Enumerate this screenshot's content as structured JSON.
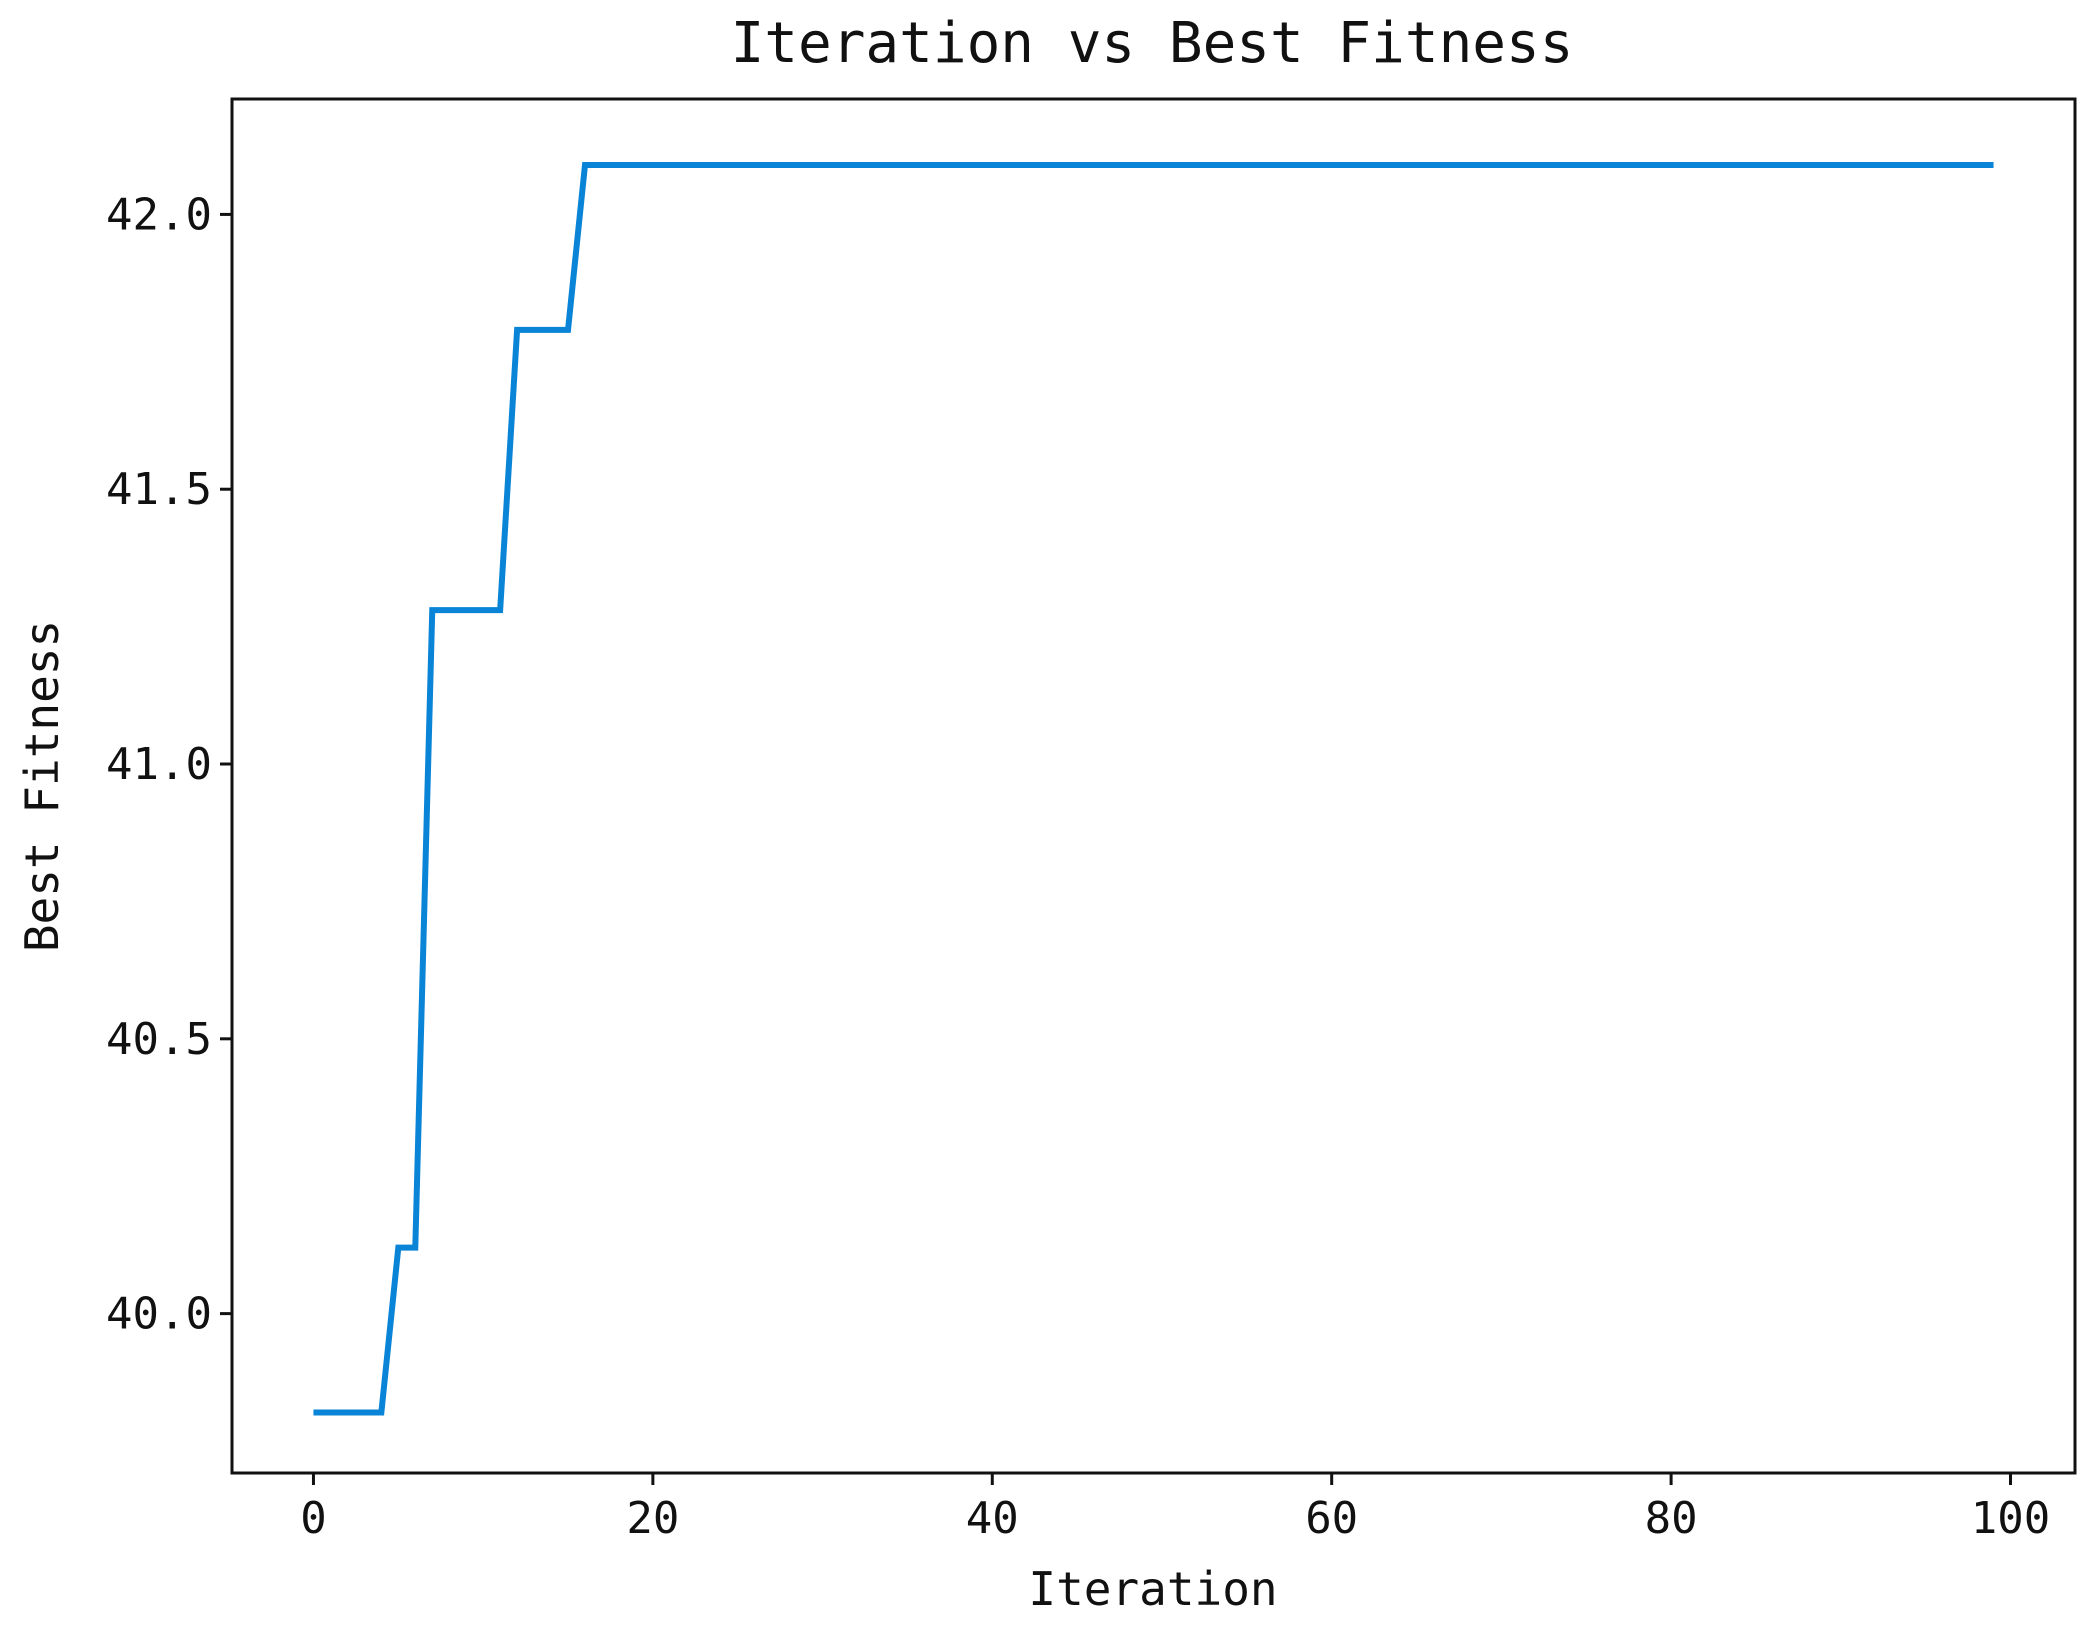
{
  "chart_data": {
    "type": "line",
    "title": "Iteration vs Best Fitness",
    "xlabel": "Iteration",
    "ylabel": "Best Fitness",
    "xlim": [
      -4.8,
      103.8
    ],
    "ylim": [
      39.71,
      42.21
    ],
    "xticks": [
      0,
      20,
      40,
      60,
      80,
      100
    ],
    "yticks": [
      40.0,
      40.5,
      41.0,
      41.5,
      42.0
    ],
    "xtick_labels": [
      "0",
      "20",
      "40",
      "60",
      "80",
      "100"
    ],
    "ytick_labels": [
      "40.0",
      "40.5",
      "41.0",
      "41.5",
      "42.0"
    ],
    "grid": false,
    "series": [
      {
        "color": "#0a84d6",
        "x": [
          0,
          1,
          2,
          3,
          4,
          5,
          6,
          7,
          8,
          9,
          10,
          11,
          12,
          13,
          14,
          15,
          16,
          17,
          18,
          19,
          20,
          21,
          22,
          23,
          24,
          25,
          26,
          27,
          28,
          29,
          30,
          31,
          32,
          33,
          34,
          35,
          36,
          37,
          38,
          39,
          40,
          41,
          42,
          43,
          44,
          45,
          46,
          47,
          48,
          49,
          50,
          51,
          52,
          53,
          54,
          55,
          56,
          57,
          58,
          59,
          60,
          61,
          62,
          63,
          64,
          65,
          66,
          67,
          68,
          69,
          70,
          71,
          72,
          73,
          74,
          75,
          76,
          77,
          78,
          79,
          80,
          81,
          82,
          83,
          84,
          85,
          86,
          87,
          88,
          89,
          90,
          91,
          92,
          93,
          94,
          95,
          96,
          97,
          98,
          99
        ],
        "y": [
          39.82,
          39.82,
          39.82,
          39.82,
          39.82,
          40.12,
          40.12,
          41.28,
          41.28,
          41.28,
          41.28,
          41.28,
          41.79,
          41.79,
          41.79,
          41.79,
          42.09,
          42.09,
          42.09,
          42.09,
          42.09,
          42.09,
          42.09,
          42.09,
          42.09,
          42.09,
          42.09,
          42.09,
          42.09,
          42.09,
          42.09,
          42.09,
          42.09,
          42.09,
          42.09,
          42.09,
          42.09,
          42.09,
          42.09,
          42.09,
          42.09,
          42.09,
          42.09,
          42.09,
          42.09,
          42.09,
          42.09,
          42.09,
          42.09,
          42.09,
          42.09,
          42.09,
          42.09,
          42.09,
          42.09,
          42.09,
          42.09,
          42.09,
          42.09,
          42.09,
          42.09,
          42.09,
          42.09,
          42.09,
          42.09,
          42.09,
          42.09,
          42.09,
          42.09,
          42.09,
          42.09,
          42.09,
          42.09,
          42.09,
          42.09,
          42.09,
          42.09,
          42.09,
          42.09,
          42.09,
          42.09,
          42.09,
          42.09,
          42.09,
          42.09,
          42.09,
          42.09,
          42.09,
          42.09,
          42.09,
          42.09,
          42.09,
          42.09,
          42.09,
          42.09,
          42.09,
          42.09,
          42.09,
          42.09,
          42.09
        ]
      }
    ]
  }
}
